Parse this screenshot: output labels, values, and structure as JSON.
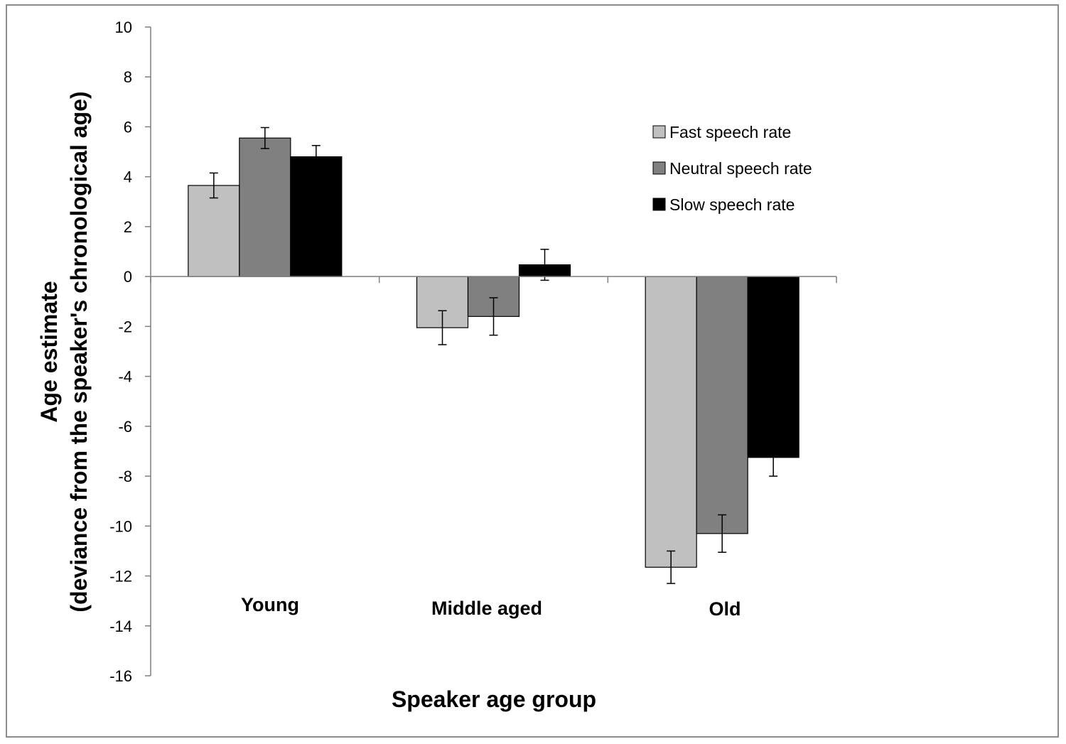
{
  "chart_data": {
    "type": "bar",
    "categories": [
      "Young",
      "Middle aged",
      "Old"
    ],
    "series": [
      {
        "name": "Fast speech rate",
        "color": "#c0c0c0",
        "values": [
          3.65,
          -2.05,
          -11.65
        ],
        "errors": [
          0.5,
          0.68,
          0.65
        ]
      },
      {
        "name": "Neutral speech rate",
        "color": "#808080",
        "values": [
          5.55,
          -1.6,
          -10.3
        ],
        "errors": [
          0.42,
          0.75,
          0.75
        ]
      },
      {
        "name": "Slow speech rate",
        "color": "#000000",
        "values": [
          4.8,
          0.47,
          -7.25
        ],
        "errors": [
          0.45,
          0.62,
          0.75
        ]
      }
    ],
    "ylim": [
      -16,
      10
    ],
    "yticks": [
      10,
      8,
      6,
      4,
      2,
      0,
      -2,
      -4,
      -6,
      -8,
      -10,
      -12,
      -14,
      -16
    ],
    "xlabel": "Speaker age group",
    "ylabel_line1": "Age estimate",
    "ylabel_line2": "(deviance from the speaker's chronological age)",
    "legend_position": "top-right",
    "grid": false
  }
}
